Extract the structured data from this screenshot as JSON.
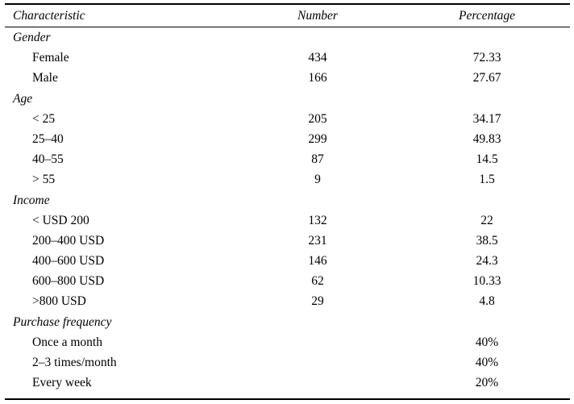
{
  "table": {
    "headers": {
      "characteristic": "Characteristic",
      "number": "Number",
      "percentage": "Percentage"
    },
    "sections": [
      {
        "title": "Gender",
        "rows": [
          {
            "label": "Female",
            "number": "434",
            "percentage": "72.33"
          },
          {
            "label": "Male",
            "number": "166",
            "percentage": "27.67"
          }
        ]
      },
      {
        "title": "Age",
        "rows": [
          {
            "label": "< 25",
            "number": "205",
            "percentage": "34.17"
          },
          {
            "label": "25–40",
            "number": "299",
            "percentage": "49.83"
          },
          {
            "label": "40–55",
            "number": "87",
            "percentage": "14.5"
          },
          {
            "label": "> 55",
            "number": "9",
            "percentage": "1.5"
          }
        ]
      },
      {
        "title": "Income",
        "rows": [
          {
            "label": "< USD 200",
            "number": "132",
            "percentage": "22"
          },
          {
            "label": "200–400 USD",
            "number": "231",
            "percentage": "38.5"
          },
          {
            "label": "400–600 USD",
            "number": "146",
            "percentage": "24.3"
          },
          {
            "label": "600–800 USD",
            "number": "62",
            "percentage": "10.33"
          },
          {
            "label": ">800 USD",
            "number": "29",
            "percentage": "4.8"
          }
        ]
      },
      {
        "title": "Purchase frequency",
        "rows": [
          {
            "label": "Once a month",
            "number": "",
            "percentage": "40%"
          },
          {
            "label": "2–3 times/month",
            "number": "",
            "percentage": "40%"
          },
          {
            "label": "Every week",
            "number": "",
            "percentage": "20%"
          }
        ]
      }
    ]
  }
}
